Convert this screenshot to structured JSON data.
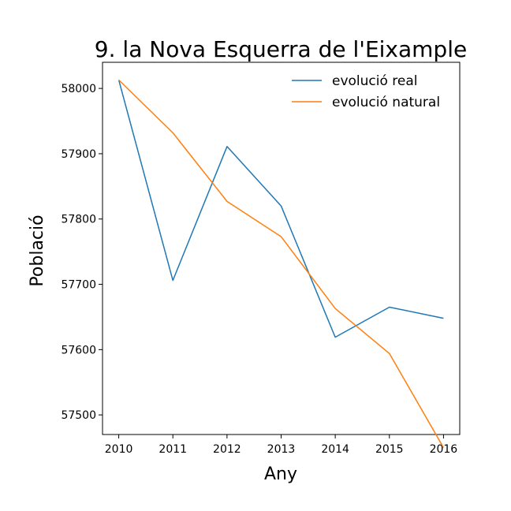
{
  "chart_data": {
    "type": "line",
    "title": "9. la Nova Esquerra de l'Eixample",
    "xlabel": "Any",
    "ylabel": "Població",
    "x": [
      "2010",
      "2011",
      "2012",
      "2013",
      "2014",
      "2015",
      "2016"
    ],
    "xlim": [
      2009.7,
      2016.3
    ],
    "ylim": [
      57470,
      58040
    ],
    "yticks": [
      57500,
      57600,
      57700,
      57800,
      57900,
      58000
    ],
    "grid": false,
    "legend_position": "top-right",
    "series": [
      {
        "name": "evolució real",
        "color": "#1f77b4",
        "values": [
          58013,
          57706,
          57911,
          57820,
          57619,
          57665,
          57648
        ]
      },
      {
        "name": "evolució natural",
        "color": "#ff7f0e",
        "values": [
          58013,
          57932,
          57827,
          57773,
          57663,
          57594,
          57450
        ]
      }
    ]
  }
}
